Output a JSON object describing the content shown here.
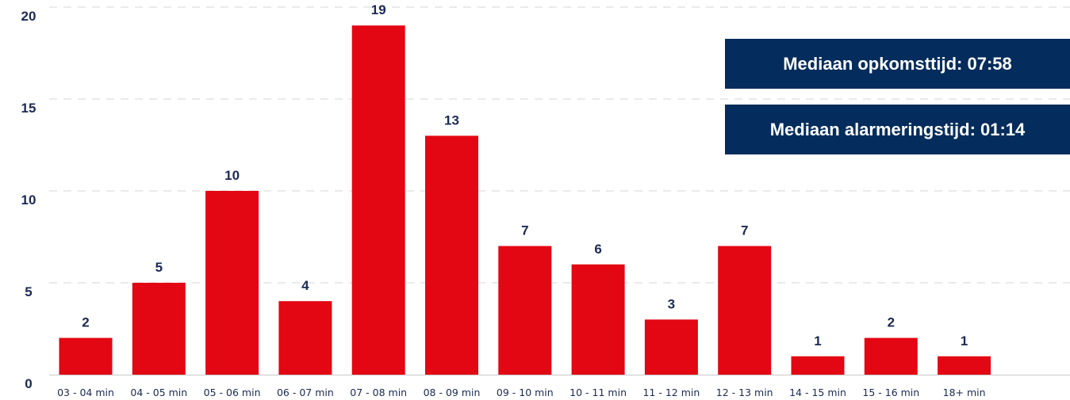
{
  "chart_data": {
    "type": "bar",
    "categories": [
      "03 - 04 min",
      "04 - 05 min",
      "05 - 06 min",
      "06 - 07 min",
      "07 - 08 min",
      "08 - 09 min",
      "09 - 10 min",
      "10 - 11 min",
      "11 - 12 min",
      "12 - 13 min",
      "14 - 15 min",
      "15 - 16 min",
      "18+ min"
    ],
    "values": [
      2,
      5,
      10,
      4,
      19,
      13,
      7,
      6,
      3,
      7,
      1,
      2,
      1
    ],
    "data_labels": [
      "2",
      "5",
      "10",
      "4",
      "19",
      "13",
      "7",
      "6",
      "3",
      "7",
      "1",
      "2",
      "1"
    ],
    "yticks": [
      "0",
      "5",
      "10",
      "15",
      "20"
    ],
    "ylim": [
      0,
      20
    ],
    "grid": true,
    "bar_color": "#e30613",
    "text_color": "#1b2a52",
    "title": "",
    "xlabel": "",
    "ylabel": ""
  },
  "info_boxes": {
    "opkomst": "Mediaan opkomsttijd: 07:58",
    "alarmering": "Mediaan alarmeringstijd: 01:14",
    "background": "#042c5c"
  }
}
